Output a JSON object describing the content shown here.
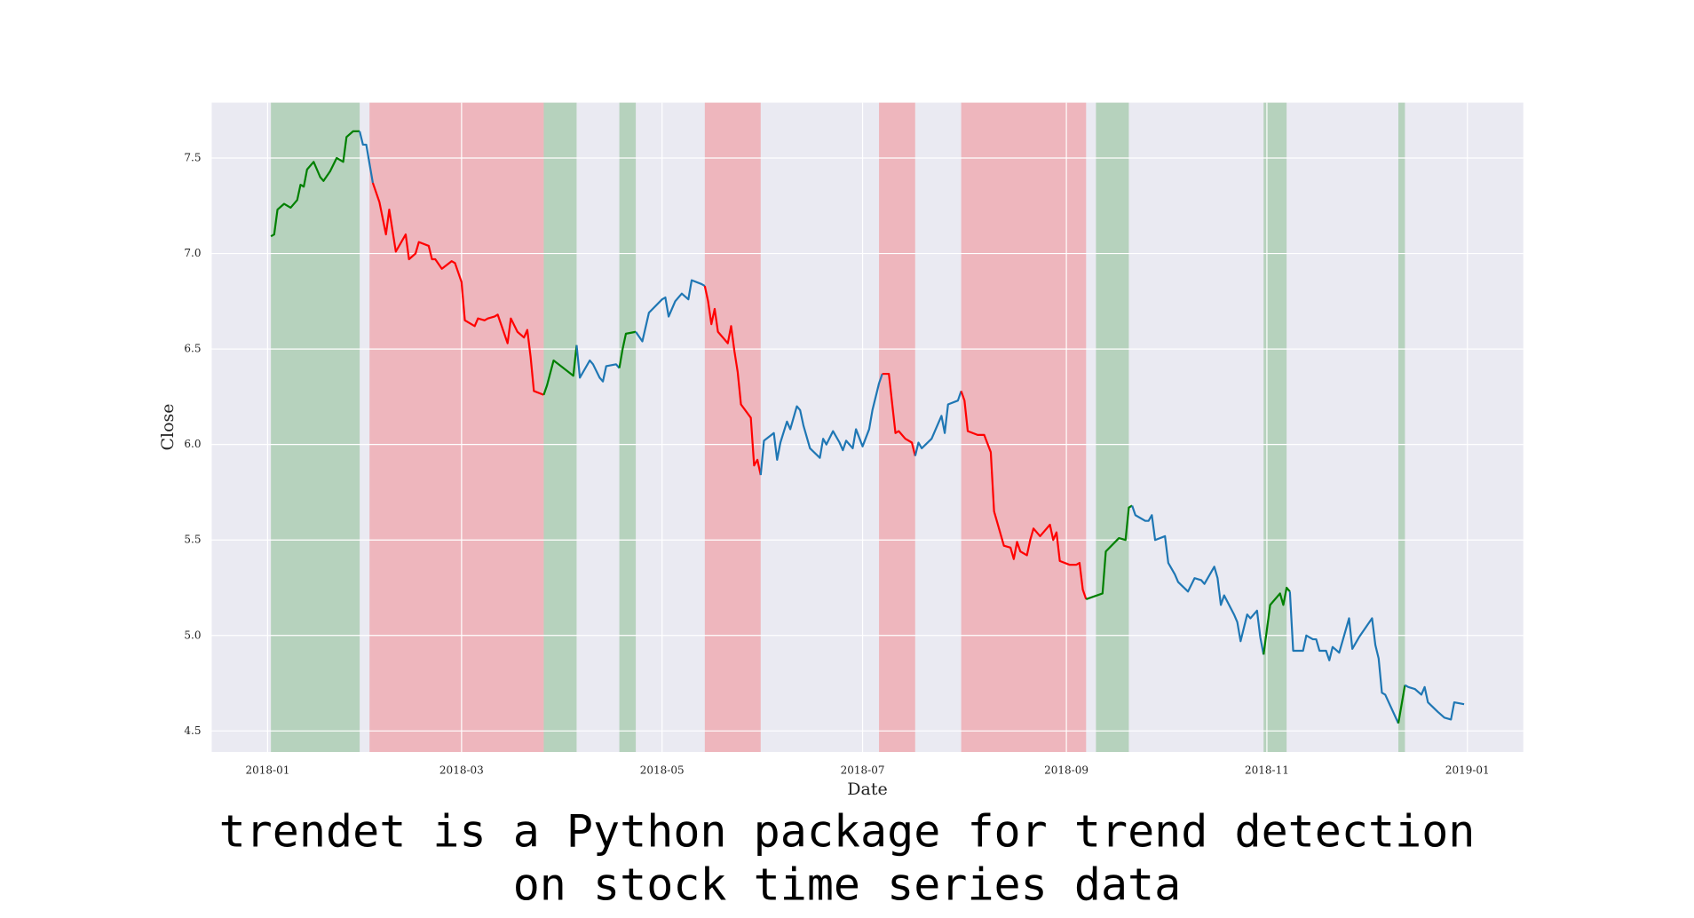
{
  "chart_data": {
    "type": "line",
    "xlabel": "Date",
    "ylabel": "Close",
    "caption": [
      "trendet is a Python package for trend detection",
      "on stock time series data"
    ],
    "xlim": [
      -17,
      382
    ],
    "ylim": [
      4.39,
      7.79
    ],
    "xticks": [
      {
        "value": 0,
        "label": "2018-01"
      },
      {
        "value": 59,
        "label": "2018-03"
      },
      {
        "value": 120,
        "label": "2018-05"
      },
      {
        "value": 181,
        "label": "2018-07"
      },
      {
        "value": 243,
        "label": "2018-09"
      },
      {
        "value": 304,
        "label": "2018-11"
      },
      {
        "value": 365,
        "label": "2019-01"
      }
    ],
    "yticks": [
      4.5,
      {
        "value": 5.0,
        "label": "5.0"
      },
      5.5,
      {
        "value": 6.0,
        "label": "6.0"
      },
      6.5,
      {
        "value": 7.0,
        "label": "7.0"
      },
      7.5
    ],
    "grid": true,
    "background": "#eaeaf2",
    "spans": [
      {
        "start": 1,
        "end": 28,
        "color": "#008000"
      },
      {
        "start": 31,
        "end": 84,
        "color": "#ff0000"
      },
      {
        "start": 84,
        "end": 94,
        "color": "#008000"
      },
      {
        "start": 107,
        "end": 112,
        "color": "#008000"
      },
      {
        "start": 133,
        "end": 150,
        "color": "#ff0000"
      },
      {
        "start": 186,
        "end": 197,
        "color": "#ff0000"
      },
      {
        "start": 211,
        "end": 249,
        "color": "#ff0000"
      },
      {
        "start": 252,
        "end": 262,
        "color": "#008000"
      },
      {
        "start": 303,
        "end": 310,
        "color": "#008000"
      },
      {
        "start": 344,
        "end": 346,
        "color": "#008000"
      }
    ],
    "series": [
      {
        "color": "#008000",
        "x": [
          1,
          2,
          3,
          5,
          7,
          9,
          10,
          11,
          12,
          14,
          16,
          17,
          19,
          21,
          23,
          24,
          26,
          28
        ],
        "values": [
          7.09,
          7.1,
          7.23,
          7.26,
          7.24,
          7.28,
          7.36,
          7.35,
          7.44,
          7.48,
          7.4,
          7.38,
          7.43,
          7.5,
          7.48,
          7.61,
          7.64,
          7.64
        ]
      },
      {
        "color": "#1f77b4",
        "x": [
          28,
          29,
          30,
          32
        ],
        "values": [
          7.64,
          7.57,
          7.57,
          7.37
        ]
      },
      {
        "color": "#ff0000",
        "x": [
          32,
          34,
          36,
          37,
          39,
          42,
          43,
          45,
          46,
          49,
          50,
          51,
          53,
          56,
          57,
          59,
          60,
          63,
          64,
          66,
          67,
          69,
          70,
          72,
          73,
          74,
          76,
          78,
          79,
          80,
          81,
          84
        ],
        "values": [
          7.37,
          7.27,
          7.1,
          7.23,
          7.01,
          7.1,
          6.97,
          7.0,
          7.06,
          7.04,
          6.97,
          6.97,
          6.92,
          6.96,
          6.95,
          6.85,
          6.65,
          6.62,
          6.66,
          6.65,
          6.66,
          6.67,
          6.68,
          6.58,
          6.53,
          6.66,
          6.59,
          6.56,
          6.6,
          6.46,
          6.28,
          6.26
        ]
      },
      {
        "color": "#008000",
        "x": [
          84,
          85,
          87,
          93,
          94
        ],
        "values": [
          6.26,
          6.31,
          6.44,
          6.36,
          6.52
        ]
      },
      {
        "color": "#1f77b4",
        "x": [
          94,
          95,
          98,
          99,
          101,
          102,
          103,
          106,
          107
        ],
        "values": [
          6.52,
          6.35,
          6.44,
          6.42,
          6.35,
          6.33,
          6.41,
          6.42,
          6.4
        ]
      },
      {
        "color": "#008000",
        "x": [
          107,
          108,
          109,
          112
        ],
        "values": [
          6.4,
          6.5,
          6.58,
          6.59
        ]
      },
      {
        "color": "#1f77b4",
        "x": [
          112,
          114,
          116,
          120,
          121,
          122,
          124,
          126,
          128,
          129,
          132,
          133
        ],
        "values": [
          6.59,
          6.54,
          6.69,
          6.76,
          6.77,
          6.67,
          6.75,
          6.79,
          6.76,
          6.86,
          6.84,
          6.83
        ]
      },
      {
        "color": "#ff0000",
        "x": [
          133,
          134,
          135,
          136,
          137,
          140,
          141,
          142,
          143,
          144,
          147,
          148,
          149,
          150
        ],
        "values": [
          6.83,
          6.75,
          6.63,
          6.71,
          6.59,
          6.53,
          6.62,
          6.49,
          6.38,
          6.21,
          6.14,
          5.89,
          5.92,
          5.84
        ]
      },
      {
        "color": "#1f77b4",
        "x": [
          150,
          151,
          154,
          155,
          156,
          158,
          159,
          161,
          162,
          163,
          165,
          168,
          169,
          170,
          172,
          174,
          175,
          176,
          178,
          179,
          181,
          183,
          184,
          186,
          187
        ],
        "values": [
          5.84,
          6.02,
          6.06,
          5.92,
          6.01,
          6.12,
          6.08,
          6.2,
          6.18,
          6.1,
          5.98,
          5.93,
          6.03,
          6.0,
          6.07,
          6.01,
          5.97,
          6.02,
          5.98,
          6.08,
          5.99,
          6.08,
          6.18,
          6.32,
          6.37
        ]
      },
      {
        "color": "#ff0000",
        "x": [
          187,
          189,
          191,
          192,
          194,
          196,
          197
        ],
        "values": [
          6.37,
          6.37,
          6.06,
          6.07,
          6.03,
          6.01,
          5.94
        ]
      },
      {
        "color": "#1f77b4",
        "x": [
          197,
          198,
          199,
          202,
          203,
          205,
          206,
          207,
          210,
          211
        ],
        "values": [
          5.94,
          6.01,
          5.98,
          6.03,
          6.07,
          6.15,
          6.06,
          6.21,
          6.23,
          6.28
        ]
      },
      {
        "color": "#ff0000",
        "x": [
          211,
          212,
          213,
          216,
          218,
          220,
          221,
          224,
          226,
          227,
          228,
          229,
          231,
          232,
          233,
          235,
          237,
          238,
          239,
          240,
          241,
          244,
          246,
          247,
          248,
          249
        ],
        "values": [
          6.28,
          6.23,
          6.07,
          6.05,
          6.05,
          5.96,
          5.65,
          5.47,
          5.46,
          5.4,
          5.49,
          5.44,
          5.42,
          5.5,
          5.56,
          5.52,
          5.56,
          5.58,
          5.5,
          5.54,
          5.39,
          5.37,
          5.37,
          5.38,
          5.24,
          5.19
        ]
      },
      {
        "color": "#008000",
        "x": [
          249,
          254,
          255,
          259,
          261,
          262,
          263
        ],
        "values": [
          5.19,
          5.22,
          5.44,
          5.51,
          5.5,
          5.67,
          5.68
        ]
      },
      {
        "color": "#1f77b4",
        "x": [
          263,
          264,
          267,
          268,
          269,
          270,
          273,
          274,
          276,
          277,
          280,
          282,
          284,
          285,
          288,
          289,
          290,
          291,
          294,
          295,
          296,
          298,
          299,
          301,
          302,
          303
        ],
        "values": [
          5.68,
          5.63,
          5.6,
          5.6,
          5.63,
          5.5,
          5.52,
          5.38,
          5.32,
          5.28,
          5.23,
          5.3,
          5.29,
          5.27,
          5.36,
          5.3,
          5.16,
          5.21,
          5.11,
          5.07,
          4.97,
          5.11,
          5.09,
          5.13,
          4.99,
          4.9
        ]
      },
      {
        "color": "#008000",
        "x": [
          303,
          305,
          308,
          309,
          310,
          311
        ],
        "values": [
          4.9,
          5.16,
          5.22,
          5.16,
          5.25,
          5.23
        ]
      },
      {
        "color": "#1f77b4",
        "x": [
          311,
          312,
          315,
          316,
          318,
          319,
          320,
          322,
          323,
          324,
          326,
          329,
          330,
          332,
          336,
          337,
          338,
          339,
          340,
          344
        ],
        "values": [
          5.23,
          4.92,
          4.92,
          5.0,
          4.98,
          4.98,
          4.92,
          4.92,
          4.87,
          4.94,
          4.91,
          5.09,
          4.93,
          4.99,
          5.09,
          4.95,
          4.88,
          4.7,
          4.69,
          4.54
        ]
      },
      {
        "color": "#008000",
        "x": [
          344,
          346
        ],
        "values": [
          4.54,
          4.74
        ]
      },
      {
        "color": "#1f77b4",
        "x": [
          346,
          347,
          349,
          351,
          352,
          353,
          356,
          358,
          360,
          361,
          364
        ],
        "values": [
          4.74,
          4.73,
          4.72,
          4.69,
          4.73,
          4.65,
          4.6,
          4.57,
          4.56,
          4.65,
          4.64
        ]
      }
    ]
  }
}
